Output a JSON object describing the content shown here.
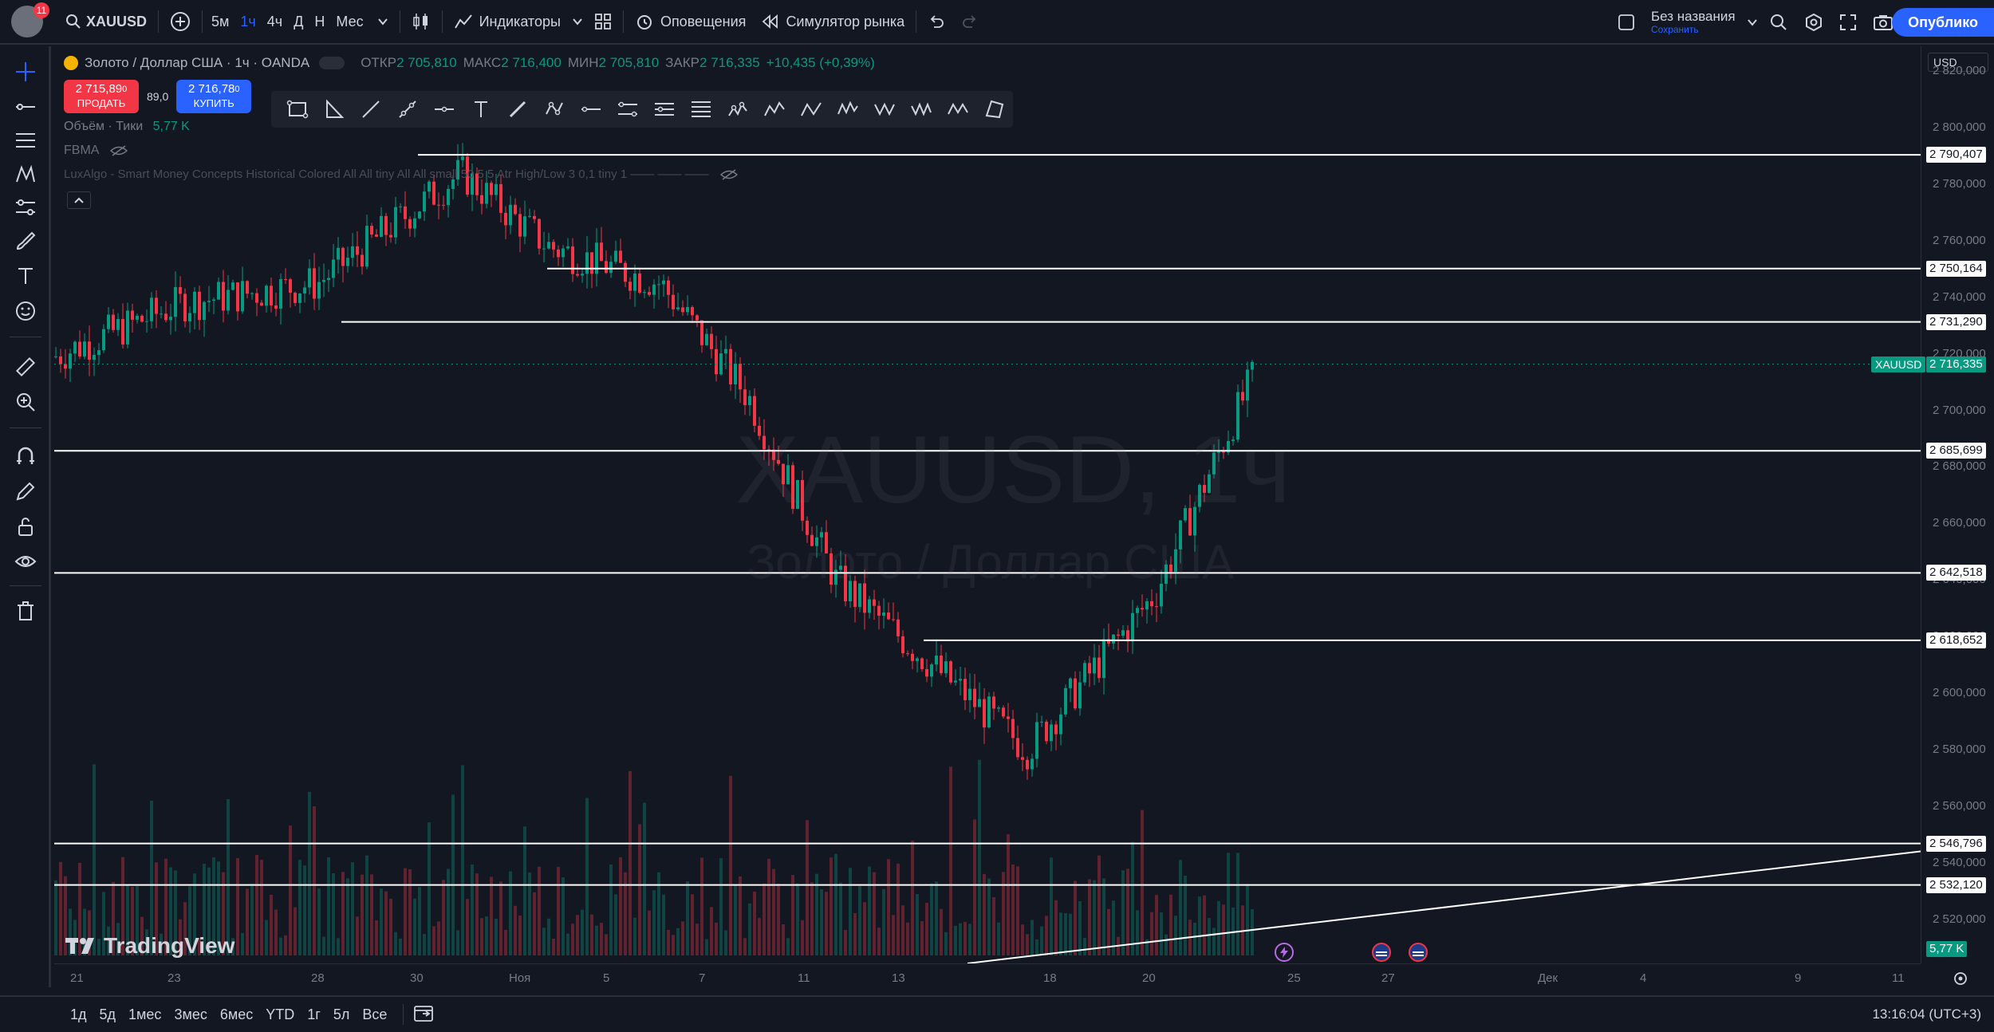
{
  "topbar": {
    "notifications_count": "11",
    "symbol": "XAUUSD",
    "intervals": [
      "5м",
      "1ч",
      "4ч",
      "Д",
      "Н",
      "Мес"
    ],
    "active_interval": "1ч",
    "indicators_label": "Индикаторы",
    "alerts_label": "Оповещения",
    "replay_label": "Симулятор рынка",
    "layout_name": "Без названия",
    "layout_saved": "Сохранить",
    "publish_label": "Опублико"
  },
  "legend": {
    "instrument": "Золото / Доллар США · 1ч · OANDA",
    "open_label": "ОТКР",
    "open_value": "2 705,810",
    "high_label": "МАКС",
    "high_value": "2 716,400",
    "low_label": "МИН",
    "low_value": "2 705,810",
    "close_label": "ЗАКР",
    "close_value": "2 716,335",
    "change": "+10,435 (+0,39%)",
    "volume_label": "Объём · Тики",
    "volume_value": "5,77 K",
    "indicator_1": "FBMA",
    "indicator_2": "LuxAlgo - Smart Money Concepts Historical Colored All All tiny All All small 50 5 5 Atr High/Low 3 0,1 tiny 1 —— —— ——"
  },
  "trade": {
    "sell_price": "2 715,89",
    "sell_price_small": "0",
    "sell_label": "ПРОДАТЬ",
    "spread": "89,0",
    "buy_price": "2 716,78",
    "buy_price_small": "0",
    "buy_label": "КУПИТЬ"
  },
  "watermark": {
    "symbol": "XAUUSD, 1ч",
    "description": "Золото / Доллар США"
  },
  "price_axis": {
    "currency": "USD",
    "ticks": [
      "2 820,000",
      "2 800,000",
      "2 780,000",
      "2 760,000",
      "2 740,000",
      "2 720,000",
      "2 700,000",
      "2 680,000",
      "2 660,000",
      "2 640,000",
      "2 620,000",
      "2 600,000",
      "2 580,000",
      "2 560,000",
      "2 540,000",
      "2 520,000"
    ],
    "current_symbol": "XAUUSD",
    "current_price": "2 716,335",
    "volume_label": "5,77 K",
    "horizontal_levels": [
      "2 790,407",
      "2 750,164",
      "2 731,290",
      "2 685,699",
      "2 642,518",
      "2 618,652",
      "2 546,796",
      "2 532,120"
    ]
  },
  "time_axis": {
    "ticks": [
      "21",
      "23",
      "28",
      "30",
      "Ноя",
      "5",
      "7",
      "11",
      "13",
      "18",
      "20",
      "25",
      "27",
      "Дек",
      "4",
      "9",
      "11"
    ]
  },
  "bottombar": {
    "ranges": [
      "1д",
      "5д",
      "1мес",
      "3мес",
      "6мес",
      "YTD",
      "1г",
      "5л",
      "Все"
    ],
    "clock": "13:16:04 (UTC+3)"
  },
  "branding": {
    "logo_text": "TradingView"
  },
  "colors": {
    "background": "#131722",
    "up": "#089981",
    "down": "#f23645",
    "accent": "#2962ff",
    "level_line": "#ffffff"
  },
  "chart_data": {
    "type": "candlestick",
    "symbol": "XAUUSD",
    "ylim": [
      2510,
      2826
    ],
    "x": [
      "21",
      "23",
      "28",
      "30",
      "Ноя",
      "5",
      "7",
      "11",
      "13",
      "18",
      "20",
      "25"
    ],
    "close": [
      2719,
      2738,
      2745,
      2784,
      2758,
      2745,
      2705,
      2640,
      2610,
      2580,
      2635,
      2716.335
    ],
    "horizontal_levels": [
      2790.407,
      2750.164,
      2731.29,
      2685.699,
      2642.518,
      2618.652,
      2546.796,
      2532.12
    ],
    "last_price": 2716.335
  }
}
